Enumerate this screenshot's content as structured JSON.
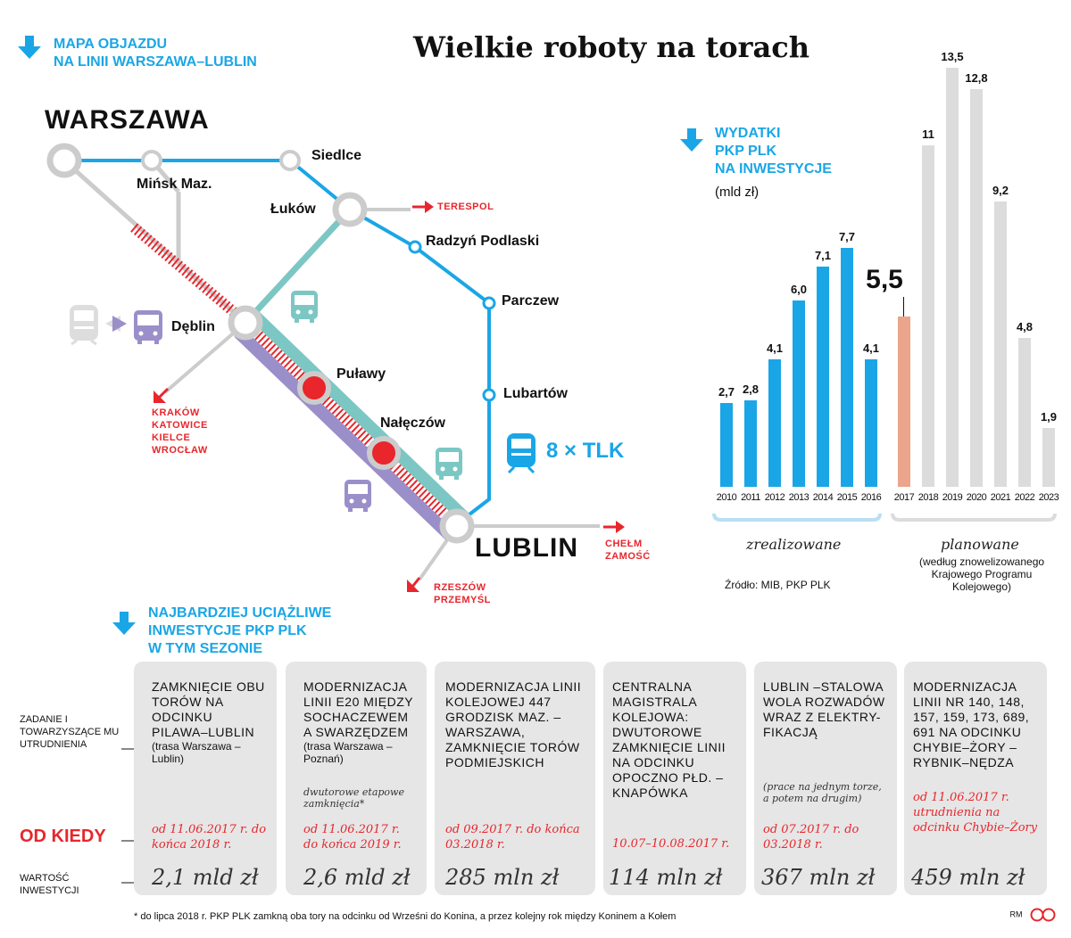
{
  "title": "Wielkie roboty na torach",
  "map": {
    "heading_line1": "MAPA OBJAZDU",
    "heading_line2": "NA LINII WARSZAWA–LUBLIN",
    "cities": {
      "warszawa": "WARSZAWA",
      "lublin": "LUBLIN",
      "minsk": "Mińsk Maz.",
      "siedlce": "Siedlce",
      "lukow": "Łuków",
      "radzyn": "Radzyń Podlaski",
      "parczew": "Parczew",
      "lubartow": "Lubartów",
      "deblin": "Dęblin",
      "pulawy": "Puławy",
      "naleczow": "Nałęczów"
    },
    "directions": {
      "terespol": "TERESPOL",
      "krakow": [
        "KRAKÓW",
        "KATOWICE",
        "KIELCE",
        "WROCŁAW"
      ],
      "chelm": [
        "CHEŁM",
        "ZAMOŚĆ"
      ],
      "rzeszow": [
        "RZESZÓW",
        "PRZEMYŚL"
      ]
    },
    "tlk": "8 × TLK",
    "colors": {
      "rail_blue": "#1aa6e6",
      "rail_teal": "#7cc7c4",
      "rail_purple": "#9b8fca",
      "closed_red": "#e8262c",
      "rail_gray": "#cccccc"
    }
  },
  "chart_data": {
    "type": "bar",
    "heading_line1": "WYDATKI",
    "heading_line2": "PKP PLK",
    "heading_line3": "NA INWESTYCJE",
    "unit": "(mld zł)",
    "categories": [
      "2010",
      "2011",
      "2012",
      "2013",
      "2014",
      "2015",
      "2016",
      "2017",
      "2018",
      "2019",
      "2020",
      "2021",
      "2022",
      "2023"
    ],
    "values": [
      2.7,
      2.8,
      4.1,
      6.0,
      7.1,
      7.7,
      4.1,
      5.5,
      11,
      13.5,
      12.8,
      9.2,
      4.8,
      1.9
    ],
    "labels": [
      "2,7",
      "2,8",
      "4,1",
      "6,0",
      "7,1",
      "7,7",
      "4,1",
      "5,5",
      "11",
      "13,5",
      "12,8",
      "9,2",
      "4,8",
      "1,9"
    ],
    "colors": [
      "#1aa6e6",
      "#1aa6e6",
      "#1aa6e6",
      "#1aa6e6",
      "#1aa6e6",
      "#1aa6e6",
      "#1aa6e6",
      "#eaa58c",
      "#dcdcdc",
      "#dcdcdc",
      "#dcdcdc",
      "#dcdcdc",
      "#dcdcdc",
      "#dcdcdc"
    ],
    "ylim": [
      0,
      13.5
    ],
    "group_realized": "zrealizowane",
    "group_planned": "planowane",
    "planned_note": "(według znowelizowanego Krajowego Programu Kolejowego)",
    "source": "Źródło: MIB, PKP PLK"
  },
  "investments": {
    "heading_line1": "NAJBARDZIEJ UCIĄŻLIWE",
    "heading_line2": "INWESTYCJE PKP PLK",
    "heading_line3": "W TYM SEZONIE",
    "row_task": "ZADANIE I TOWARZYSZĄCE MU UTRUDNIENIA",
    "row_since": "OD KIEDY",
    "row_value": "WARTOŚĆ INWESTYCJI",
    "cards": [
      {
        "title": "ZAMKNIĘCIE OBU TORÓW NA ODCINKU PILAWA–LUBLIN",
        "small": "(trasa Warszawa –Lublin)",
        "italic": "",
        "date": "od 11.06.2017 r. do końca 2018 r.",
        "value": "2,1 mld zł"
      },
      {
        "title": "MODERNIZACJA LINII E20 MIĘDZY SOCHACZEWEM A SWARZĘDZEM",
        "small": "(trasa Warszawa –Poznań)",
        "italic": "dwutorowe etapowe zamknięcia*",
        "date": "od 11.06.2017 r. do końca 2019 r.",
        "value": "2,6 mld zł"
      },
      {
        "title": "MODERNIZACJA LINII KOLEJOWEJ 447 GRODZISK MAZ. –WARSZAWA, ZAMKNIĘCIE TORÓW PODMIEJSKICH",
        "small": "",
        "italic": "",
        "date": "od 09.2017 r. do końca 03.2018 r.",
        "value": "285 mln zł"
      },
      {
        "title": "CENTRALNA MAGISTRALA KOLEJOWA: DWUTOROWE ZAMKNIĘCIE LINII NA ODCINKU OPOCZNO PŁD. –KNAPÓWKA",
        "small": "",
        "italic": "",
        "date": "10.07–10.08.2017 r.",
        "value": "114 mln zł"
      },
      {
        "title": "LUBLIN –STALOWA WOLA ROZWADÓW WRAZ Z ELEKTRY- FIKACJĄ",
        "small": "",
        "italic": "(prace na jednym torze, a potem na drugim)",
        "date": "od 07.2017 r. do 03.2018 r.",
        "value": "367 mln zł"
      },
      {
        "title": "MODERNIZACJA LINII NR 140, 148, 157, 159, 173, 689, 691 NA ODCINKU CHYBIE–ŻORY –RYBNIK–NĘDZA",
        "small": "",
        "italic": "",
        "date": "od 11.06.2017 r. utrudnienia na odcinku Chybie–Żory",
        "value": "459 mln zł"
      }
    ]
  },
  "footnote": "* do lipca 2018 r. PKP PLK zamkną oba tory na odcinku od Wrześni do Konina, a przez kolejny rok między Koninem a Kołem",
  "credits": "RM"
}
